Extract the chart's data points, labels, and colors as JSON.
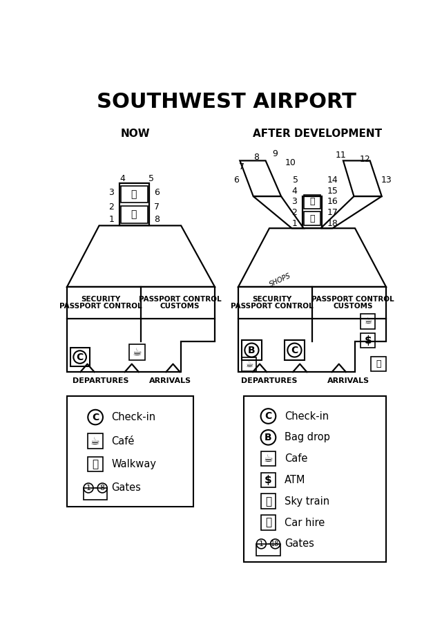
{
  "title": "SOUTHWEST AIRPORT",
  "title_fontsize": 22,
  "title_fontweight": "bold",
  "bg_color": "#ffffff",
  "now_label": "NOW",
  "after_label": "AFTER DEVELOPMENT",
  "lw": 1.6
}
